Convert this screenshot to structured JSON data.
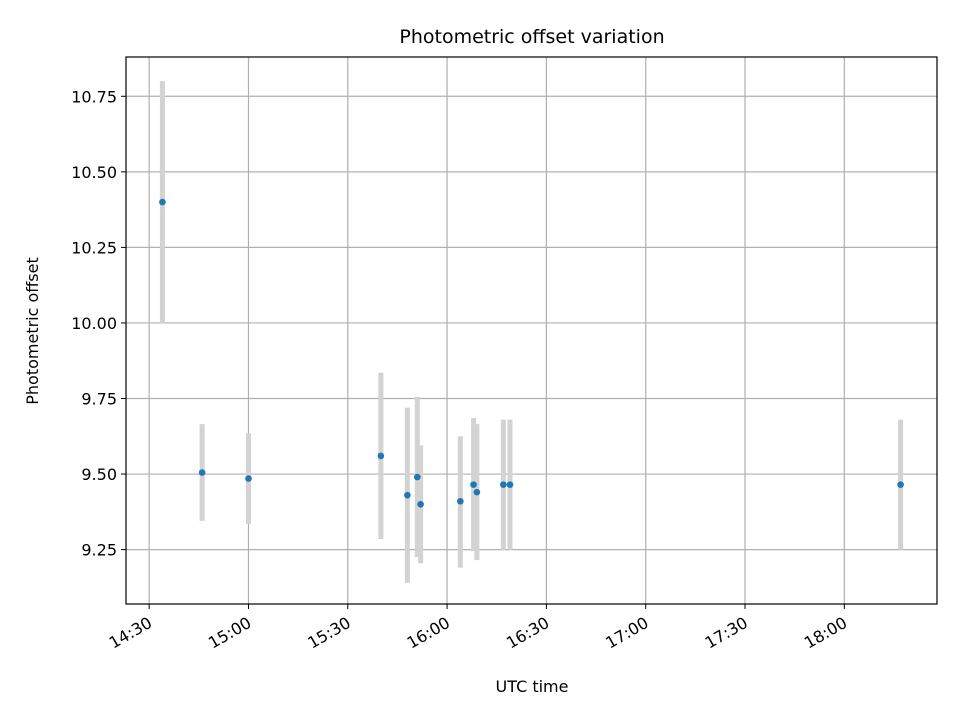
{
  "chart_data": {
    "type": "scatter",
    "title": "Photometric offset variation",
    "xlabel": "UTC time",
    "ylabel": "Photometric offset",
    "xlim": [
      "14:23",
      "18:28"
    ],
    "ylim": [
      9.07,
      10.88
    ],
    "x_ticks": [
      "14:30",
      "15:00",
      "15:30",
      "16:00",
      "16:30",
      "17:00",
      "17:30",
      "18:00"
    ],
    "y_ticks": [
      9.25,
      9.5,
      9.75,
      10.0,
      10.25,
      10.5,
      10.75
    ],
    "y_tick_labels": [
      "9.25",
      "9.50",
      "9.75",
      "10.00",
      "10.25",
      "10.50",
      "10.75"
    ],
    "grid": true,
    "marker_color": "#1f77b4",
    "errorbar_color": "#d3d3d3",
    "points": [
      {
        "time": "14:34",
        "y": 10.4,
        "ylow": 10.0,
        "yhigh": 10.8
      },
      {
        "time": "14:46",
        "y": 9.505,
        "ylow": 9.345,
        "yhigh": 9.665
      },
      {
        "time": "15:00",
        "y": 9.485,
        "ylow": 9.335,
        "yhigh": 9.635
      },
      {
        "time": "15:40",
        "y": 9.56,
        "ylow": 9.285,
        "yhigh": 9.835
      },
      {
        "time": "15:48",
        "y": 9.43,
        "ylow": 9.14,
        "yhigh": 9.72
      },
      {
        "time": "15:51",
        "y": 9.49,
        "ylow": 9.225,
        "yhigh": 9.755
      },
      {
        "time": "15:52",
        "y": 9.4,
        "ylow": 9.205,
        "yhigh": 9.595
      },
      {
        "time": "16:04",
        "y": 9.41,
        "ylow": 9.19,
        "yhigh": 9.625
      },
      {
        "time": "16:08",
        "y": 9.465,
        "ylow": 9.245,
        "yhigh": 9.685
      },
      {
        "time": "16:09",
        "y": 9.44,
        "ylow": 9.215,
        "yhigh": 9.665
      },
      {
        "time": "16:17",
        "y": 9.465,
        "ylow": 9.25,
        "yhigh": 9.68
      },
      {
        "time": "16:19",
        "y": 9.465,
        "ylow": 9.25,
        "yhigh": 9.68
      },
      {
        "time": "18:17",
        "y": 9.465,
        "ylow": 9.25,
        "yhigh": 9.68
      }
    ]
  }
}
